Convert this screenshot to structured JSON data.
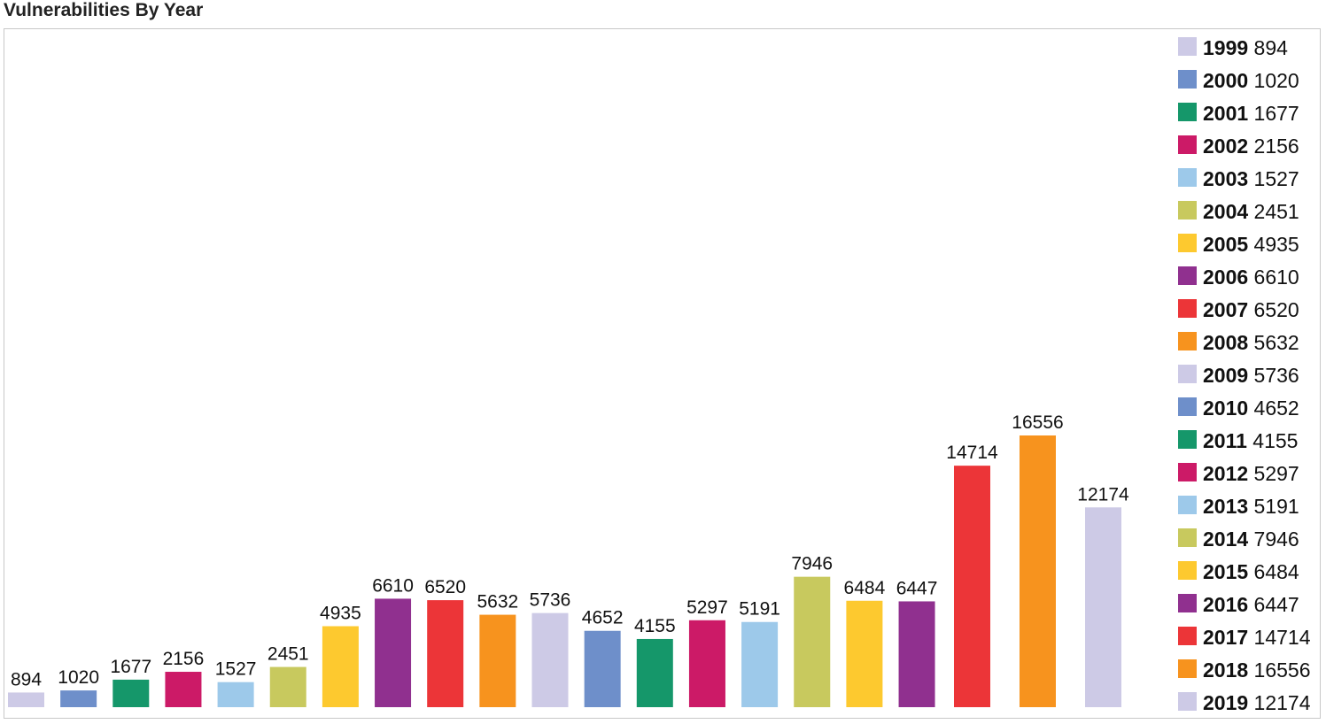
{
  "chart_data": {
    "type": "bar",
    "title": "Vulnerabilities By Year",
    "categories": [
      "1999",
      "2000",
      "2001",
      "2002",
      "2003",
      "2004",
      "2005",
      "2006",
      "2007",
      "2008",
      "2009",
      "2010",
      "2011",
      "2012",
      "2013",
      "2014",
      "2015",
      "2016",
      "2017",
      "2018",
      "2019"
    ],
    "values": [
      894,
      1020,
      1677,
      2156,
      1527,
      2451,
      4935,
      6610,
      6520,
      5632,
      5736,
      4652,
      4155,
      5297,
      5191,
      7946,
      6484,
      6447,
      14714,
      16556,
      12174
    ],
    "colors": [
      "#cdcae6",
      "#6e8fca",
      "#15976a",
      "#cc1a67",
      "#9dc9ea",
      "#c8c95e",
      "#fdc92f",
      "#90308f",
      "#ec3538",
      "#f7931e",
      "#cdcae6",
      "#6e8fca",
      "#15976a",
      "#cc1a67",
      "#9dc9ea",
      "#c8c95e",
      "#fdc92f",
      "#90308f",
      "#ec3538",
      "#f7931e",
      "#cdcae6"
    ],
    "data_labels": true,
    "legend_position": "right",
    "grid": false,
    "xlabel": "",
    "ylabel": "",
    "ylim": [
      0,
      16556
    ]
  }
}
